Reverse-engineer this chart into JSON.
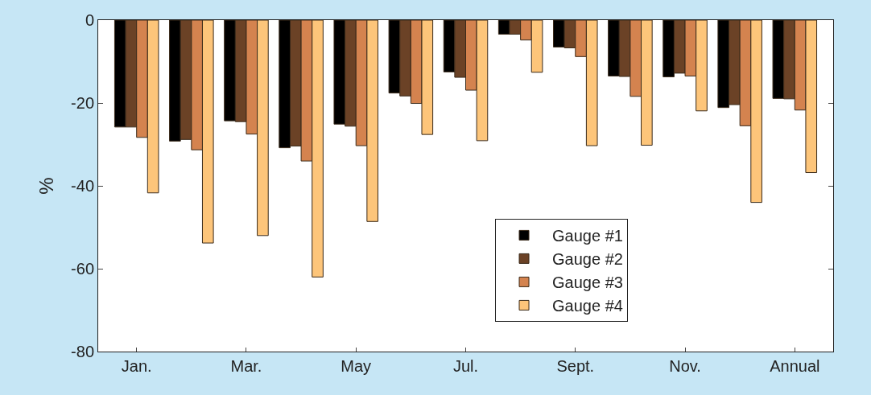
{
  "chart_data": {
    "type": "bar",
    "ylabel": "%",
    "categories": [
      "Jan.",
      null,
      "Mar.",
      null,
      "May",
      null,
      "Jul.",
      null,
      "Sept.",
      null,
      "Nov.",
      null,
      "Annual"
    ],
    "series": [
      {
        "name": "Gauge #1",
        "color": "#000000",
        "values": [
          -25.8,
          -29.2,
          -24.3,
          -30.8,
          -25.1,
          -17.6,
          -12.5,
          -3.4,
          -6.5,
          -13.5,
          -13.7,
          -21.1,
          -18.9
        ]
      },
      {
        "name": "Gauge #2",
        "color": "#6b4226",
        "values": [
          -25.8,
          -28.8,
          -24.5,
          -30.4,
          -25.6,
          -18.3,
          -13.8,
          -3.4,
          -6.7,
          -13.6,
          -12.8,
          -20.4,
          -19
        ]
      },
      {
        "name": "Gauge #3",
        "color": "#d4834f",
        "values": [
          -28.3,
          -31.3,
          -27.5,
          -34,
          -30.3,
          -20.1,
          -16.9,
          -4.8,
          -8.8,
          -18.4,
          -13.5,
          -25.5,
          -21.7
        ]
      },
      {
        "name": "Gauge #4",
        "color": "#fdc57a",
        "values": [
          -41.7,
          -53.8,
          -52,
          -62,
          -48.6,
          -27.6,
          -29.1,
          -12.6,
          -30.3,
          -30.2,
          -21.9,
          -44,
          -36.8
        ]
      }
    ],
    "ylim": [
      -80,
      0
    ],
    "yticks": [
      0,
      -20,
      -40,
      -60,
      -80
    ],
    "grid": false,
    "legend": "bottom right"
  }
}
